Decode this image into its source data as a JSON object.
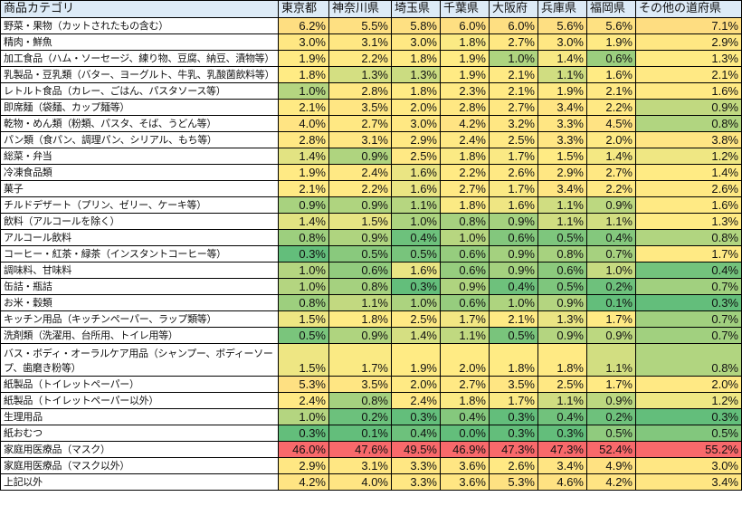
{
  "headers": [
    "商品カテゴリ",
    "東京都",
    "神奈川県",
    "埼玉県",
    "千葉県",
    "大阪府",
    "兵庫県",
    "福岡県",
    "その他の道府県"
  ],
  "color_scale": {
    "min": "#63BE7B",
    "mid": "#FFEB84",
    "max": "#F8696B"
  },
  "rows": [
    {
      "category": "野菜・果物（カットされたもの含む）",
      "values": [
        "6.2%",
        "5.5%",
        "5.8%",
        "6.0%",
        "6.0%",
        "5.6%",
        "5.6%",
        "7.1%"
      ]
    },
    {
      "category": "精肉・鮮魚",
      "values": [
        "3.0%",
        "3.1%",
        "3.0%",
        "1.8%",
        "2.7%",
        "3.0%",
        "1.9%",
        "2.9%"
      ]
    },
    {
      "category": "加工食品（ハム・ソーセージ、練り物、豆腐、納豆、漬物等）",
      "values": [
        "1.9%",
        "2.2%",
        "1.8%",
        "1.9%",
        "1.0%",
        "1.4%",
        "0.6%",
        "1.3%"
      ]
    },
    {
      "category": "乳製品・豆乳類（バター、ヨーグルト、牛乳、乳酸菌飲料等）",
      "values": [
        "1.8%",
        "1.3%",
        "1.3%",
        "1.9%",
        "2.1%",
        "1.1%",
        "1.6%",
        "2.1%"
      ]
    },
    {
      "category": "レトルト食品（カレー、ごはん、パスタソース等）",
      "values": [
        "1.0%",
        "2.8%",
        "1.8%",
        "2.3%",
        "2.1%",
        "1.9%",
        "2.1%",
        "1.6%"
      ]
    },
    {
      "category": "即席麺（袋麺、カップ麺等）",
      "values": [
        "2.1%",
        "3.5%",
        "2.0%",
        "2.8%",
        "2.7%",
        "3.4%",
        "2.2%",
        "0.9%"
      ]
    },
    {
      "category": "乾物・めん類（粉類、パスタ、そば、うどん等）",
      "values": [
        "4.0%",
        "2.7%",
        "3.0%",
        "4.2%",
        "3.2%",
        "3.3%",
        "4.5%",
        "0.8%"
      ]
    },
    {
      "category": "パン類（食パン、調理パン、シリアル、もち等）",
      "values": [
        "2.8%",
        "3.1%",
        "2.9%",
        "2.4%",
        "2.5%",
        "3.3%",
        "2.0%",
        "3.8%"
      ]
    },
    {
      "category": "総菜・弁当",
      "values": [
        "1.4%",
        "0.9%",
        "2.5%",
        "1.8%",
        "1.7%",
        "1.5%",
        "1.4%",
        "1.2%"
      ]
    },
    {
      "category": "冷凍食品類",
      "values": [
        "1.9%",
        "2.4%",
        "1.6%",
        "2.2%",
        "2.6%",
        "2.9%",
        "2.7%",
        "1.4%"
      ]
    },
    {
      "category": "菓子",
      "values": [
        "2.1%",
        "2.2%",
        "1.6%",
        "2.7%",
        "1.7%",
        "3.4%",
        "2.2%",
        "2.6%"
      ]
    },
    {
      "category": "チルドデザート（プリン、ゼリー、ケーキ等）",
      "values": [
        "0.9%",
        "0.9%",
        "1.1%",
        "1.8%",
        "1.6%",
        "1.1%",
        "0.9%",
        "1.6%"
      ]
    },
    {
      "category": "飲料（アルコールを除く）",
      "values": [
        "1.4%",
        "1.5%",
        "1.0%",
        "0.8%",
        "0.9%",
        "1.1%",
        "1.1%",
        "1.3%"
      ]
    },
    {
      "category": "アルコール飲料",
      "values": [
        "0.8%",
        "0.9%",
        "0.4%",
        "1.0%",
        "0.6%",
        "0.5%",
        "0.4%",
        "0.8%"
      ]
    },
    {
      "category": "コーヒー・紅茶・緑茶（インスタントコーヒー等）",
      "values": [
        "0.3%",
        "0.5%",
        "0.5%",
        "0.6%",
        "0.9%",
        "0.8%",
        "0.7%",
        "1.7%"
      ]
    },
    {
      "category": "調味料、甘味料",
      "values": [
        "1.0%",
        "0.6%",
        "1.6%",
        "0.6%",
        "0.9%",
        "0.6%",
        "1.0%",
        "0.4%"
      ]
    },
    {
      "category": "缶詰・瓶詰",
      "values": [
        "1.0%",
        "0.8%",
        "0.3%",
        "0.9%",
        "0.4%",
        "0.5%",
        "0.2%",
        "0.7%"
      ]
    },
    {
      "category": "お米・穀類",
      "values": [
        "0.8%",
        "1.1%",
        "1.0%",
        "0.6%",
        "1.0%",
        "0.9%",
        "0.1%",
        "0.3%"
      ]
    },
    {
      "category": "キッチン用品（キッチンペーパー、ラップ類等）",
      "values": [
        "1.5%",
        "1.8%",
        "2.5%",
        "1.7%",
        "2.1%",
        "1.3%",
        "1.7%",
        "0.7%"
      ]
    },
    {
      "category": "洗剤類（洗濯用、台所用、トイレ用等）",
      "values": [
        "0.5%",
        "0.9%",
        "1.4%",
        "1.1%",
        "0.5%",
        "0.9%",
        "0.9%",
        "0.7%"
      ]
    },
    {
      "category": "バス・ボディ・オーラルケア用品（シャンプー、ボディーソープ、歯磨き粉等）",
      "values": [
        "1.5%",
        "1.7%",
        "1.9%",
        "2.0%",
        "1.8%",
        "1.8%",
        "1.1%",
        "0.8%"
      ],
      "tall": true
    },
    {
      "category": "紙製品（トイレットペーパー）",
      "values": [
        "5.3%",
        "3.5%",
        "2.0%",
        "2.7%",
        "3.5%",
        "2.5%",
        "1.7%",
        "2.0%"
      ]
    },
    {
      "category": "紙製品（トイレットペーパー以外）",
      "values": [
        "2.4%",
        "0.8%",
        "2.4%",
        "1.8%",
        "1.7%",
        "1.1%",
        "0.9%",
        "1.2%"
      ]
    },
    {
      "category": "生理用品",
      "values": [
        "1.0%",
        "0.2%",
        "0.3%",
        "0.4%",
        "0.3%",
        "0.4%",
        "0.2%",
        "0.3%"
      ]
    },
    {
      "category": "紙おむつ",
      "values": [
        "0.3%",
        "0.1%",
        "0.4%",
        "0.0%",
        "0.3%",
        "0.3%",
        "0.5%",
        "0.5%"
      ]
    },
    {
      "category": "家庭用医療品（マスク）",
      "values": [
        "46.0%",
        "47.6%",
        "49.5%",
        "46.9%",
        "47.3%",
        "47.3%",
        "52.4%",
        "55.2%"
      ]
    },
    {
      "category": "家庭用医療品（マスク以外）",
      "values": [
        "2.9%",
        "3.1%",
        "3.3%",
        "3.6%",
        "2.6%",
        "3.4%",
        "4.9%",
        "3.0%"
      ]
    },
    {
      "category": "上記以外",
      "values": [
        "4.2%",
        "4.0%",
        "3.3%",
        "3.6%",
        "5.3%",
        "4.6%",
        "4.2%",
        "3.4%"
      ]
    }
  ]
}
